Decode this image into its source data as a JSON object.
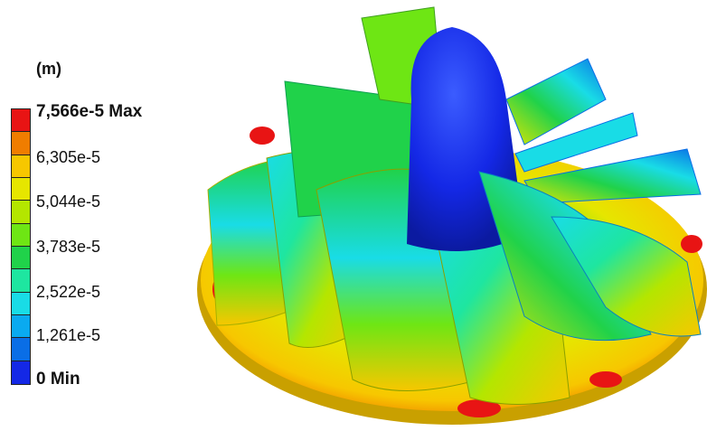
{
  "legend": {
    "unit": "(m)",
    "labels": [
      "7,566e-5 Max",
      "6,305e-5",
      "5,044e-5",
      "3,783e-5",
      "2,522e-5",
      "1,261e-5",
      "0 Min"
    ],
    "colors": [
      "#e81414",
      "#f07d00",
      "#f7c700",
      "#e6e600",
      "#b4e600",
      "#6ee614",
      "#20d24a",
      "#1ee6a0",
      "#19dce6",
      "#0aaaf0",
      "#0a6ee6",
      "#1428e6"
    ]
  }
}
